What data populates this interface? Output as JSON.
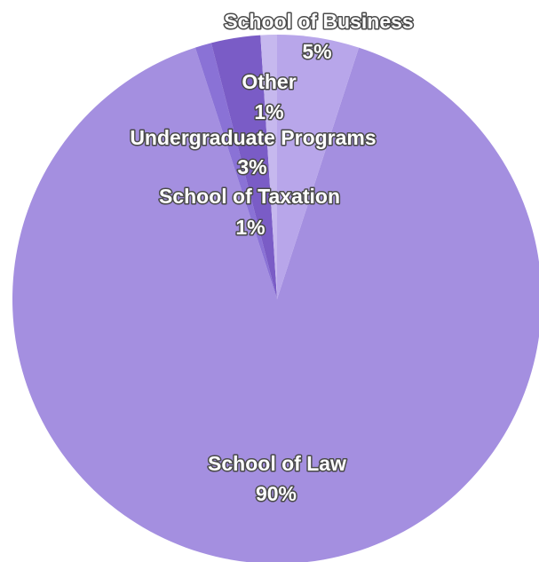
{
  "chart_data": {
    "type": "pie",
    "title": "",
    "slices": [
      {
        "label": "School of Law",
        "pct_label": "90%",
        "value": 90,
        "color": "#a48fe0"
      },
      {
        "label": "School of Taxation",
        "pct_label": "1%",
        "value": 1,
        "color": "#8a72d6"
      },
      {
        "label": "Undergraduate Programs",
        "pct_label": "3%",
        "value": 3,
        "color": "#7a5cc6"
      },
      {
        "label": "Other",
        "pct_label": "1%",
        "value": 1,
        "color": "#c6b8ee"
      },
      {
        "label": "School of Business",
        "pct_label": "5%",
        "value": 5,
        "color": "#b8a6ea"
      }
    ]
  }
}
